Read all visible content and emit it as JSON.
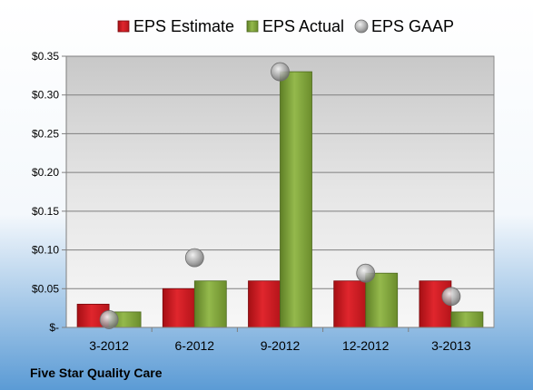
{
  "company": "Five Star Quality Care",
  "chart_data": {
    "type": "bar",
    "categories": [
      "3-2012",
      "6-2012",
      "9-2012",
      "12-2012",
      "3-2013"
    ],
    "series": [
      {
        "name": "EPS Estimate",
        "kind": "bar",
        "color": "#c8161d",
        "values": [
          0.03,
          0.05,
          0.06,
          0.06,
          0.06
        ]
      },
      {
        "name": "EPS Actual",
        "kind": "bar",
        "color": "#7fa23a",
        "values": [
          0.02,
          0.06,
          0.33,
          0.07,
          0.02
        ]
      },
      {
        "name": "EPS GAAP",
        "kind": "marker",
        "color": "#a9a9a9",
        "values": [
          0.01,
          0.09,
          0.33,
          0.07,
          0.04
        ]
      }
    ],
    "ylim": [
      0,
      0.35
    ],
    "yticks": [
      0,
      0.05,
      0.1,
      0.15,
      0.2,
      0.25,
      0.3,
      0.35
    ],
    "ytick_labels": [
      "$-",
      "$0.05",
      "$0.10",
      "$0.15",
      "$0.20",
      "$0.25",
      "$0.30",
      "$0.35"
    ],
    "legend": "top",
    "grid": true,
    "colors": {
      "background_top": "#ffffff",
      "background_bottom": "#5b9bd5",
      "plot_area": "#d9d9d9",
      "grid": "#7f7f7f"
    }
  }
}
